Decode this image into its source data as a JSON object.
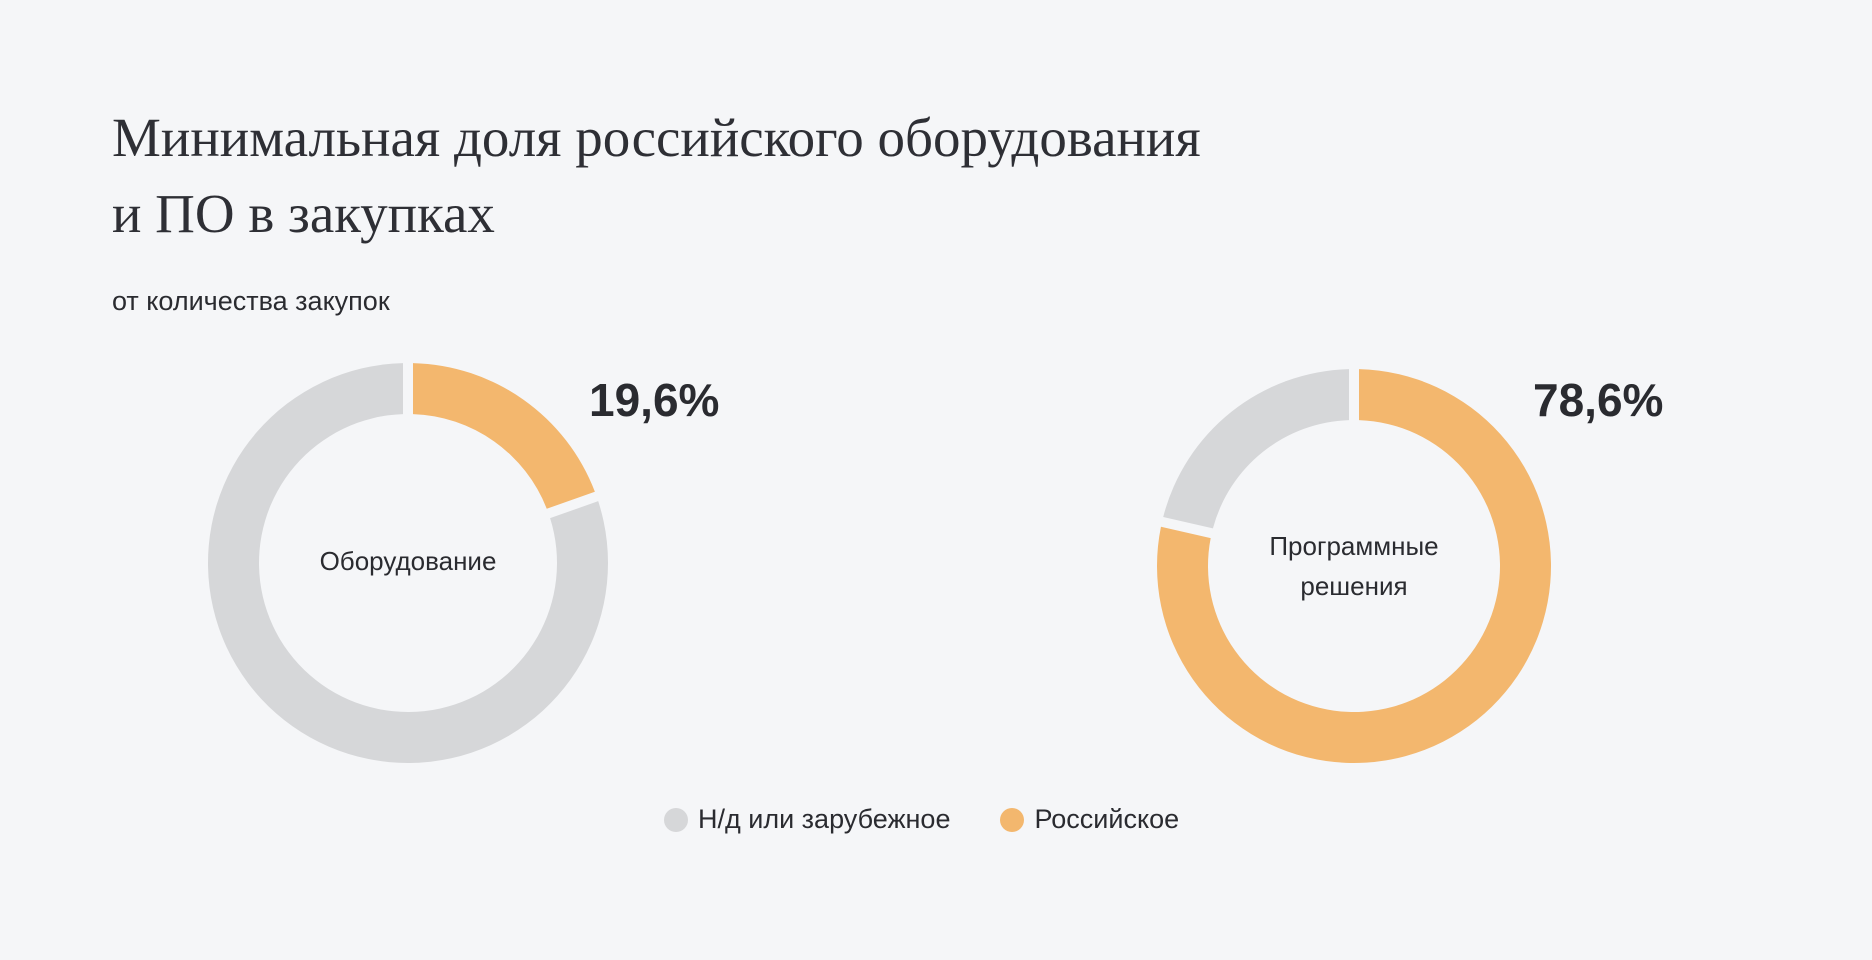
{
  "title": {
    "line1": "Минимальная доля российского оборудования",
    "line2": "и ПО в закупках"
  },
  "subtitle": "от количества закупок",
  "colors": {
    "foreign": "#d6d7d9",
    "russian": "#f3b76e",
    "background": "#f5f6f8"
  },
  "chart_data": [
    {
      "type": "pie",
      "center_label": [
        "Оборудование"
      ],
      "highlight_label": "19,6%",
      "series": [
        {
          "name": "Российское",
          "value": 19.6
        },
        {
          "name": "Н/д или зарубежное",
          "value": 80.4
        }
      ]
    },
    {
      "type": "pie",
      "center_label": [
        "Программные",
        "решения"
      ],
      "highlight_label": "78,6%",
      "series": [
        {
          "name": "Российское",
          "value": 78.6
        },
        {
          "name": "Н/д или зарубежное",
          "value": 21.4
        }
      ]
    }
  ],
  "legend": {
    "items": [
      {
        "label": "Н/д или зарубежное",
        "color": "#d6d7d9"
      },
      {
        "label": "Российское",
        "color": "#f3b76e"
      }
    ],
    "placement": "bottom-center"
  }
}
